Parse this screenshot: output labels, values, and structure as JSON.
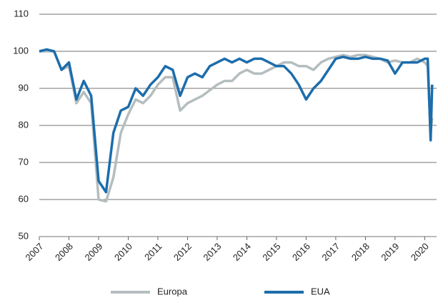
{
  "chart_data": {
    "type": "line",
    "x": [
      2007,
      2007.25,
      2007.5,
      2007.75,
      2008,
      2008.25,
      2008.5,
      2008.75,
      2009,
      2009.25,
      2009.5,
      2009.75,
      2010,
      2010.25,
      2010.5,
      2010.75,
      2011,
      2011.25,
      2011.5,
      2011.75,
      2012,
      2012.25,
      2012.5,
      2012.75,
      2013,
      2013.25,
      2013.5,
      2013.75,
      2014,
      2014.25,
      2014.5,
      2014.75,
      2015,
      2015.25,
      2015.5,
      2015.75,
      2016,
      2016.25,
      2016.5,
      2016.75,
      2017,
      2017.25,
      2017.5,
      2017.75,
      2018,
      2018.25,
      2018.5,
      2018.75,
      2019,
      2019.25,
      2019.5,
      2019.75,
      2020,
      2020.1,
      2020.2,
      2020.25
    ],
    "series": [
      {
        "name": "Europa",
        "color": "#b5bdbf",
        "values": [
          100,
          100,
          100,
          95,
          96,
          86,
          89,
          86,
          60,
          59.5,
          66,
          78,
          83,
          87,
          86,
          88,
          91,
          93,
          93,
          84,
          86,
          87,
          88,
          89.5,
          91,
          92,
          92,
          94,
          95,
          94,
          94,
          95,
          96,
          97,
          97,
          96,
          96,
          95,
          97,
          98,
          98.5,
          99,
          98.5,
          99,
          99,
          98.5,
          98,
          97,
          97.5,
          97,
          97,
          98,
          97,
          96,
          78,
          82
        ]
      },
      {
        "name": "EUA",
        "color": "#1c6dab",
        "values": [
          100,
          100.5,
          100,
          95,
          97,
          87,
          92,
          88,
          65,
          62,
          78,
          84,
          85,
          90,
          88,
          91,
          93,
          96,
          95,
          88,
          93,
          94,
          93,
          96,
          97,
          98,
          97,
          98,
          97,
          98,
          98,
          97,
          96,
          96,
          94,
          91,
          87,
          90,
          92,
          95,
          98,
          98.5,
          98,
          98,
          98.5,
          98,
          98,
          97.5,
          94,
          97,
          97,
          97,
          98,
          98,
          76,
          91
        ]
      }
    ],
    "xlim": [
      2007,
      2020.4
    ],
    "xticks": [
      2007,
      2008,
      2009,
      2010,
      2011,
      2012,
      2013,
      2014,
      2015,
      2016,
      2017,
      2018,
      2019,
      2020
    ],
    "ylim": [
      50,
      110
    ],
    "yticks": [
      50,
      60,
      70,
      80,
      90,
      100,
      110
    ],
    "grid": true
  }
}
